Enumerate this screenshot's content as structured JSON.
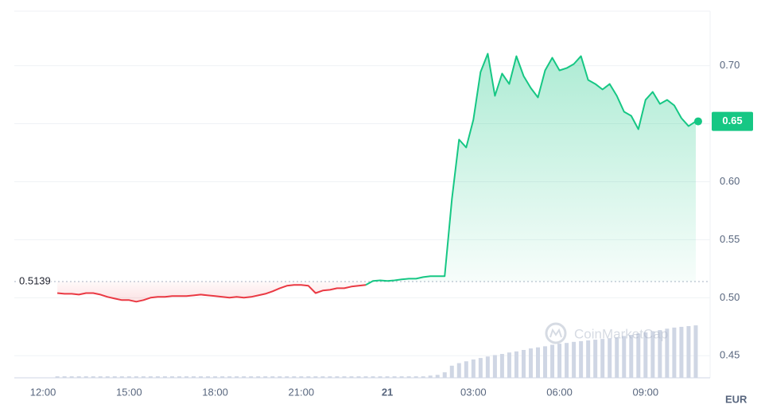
{
  "chart_data": {
    "type": "line",
    "x": [
      12.5,
      12.75,
      13,
      13.25,
      13.5,
      13.75,
      14,
      14.25,
      14.5,
      14.75,
      15,
      15.25,
      15.5,
      15.75,
      16,
      16.25,
      16.5,
      16.75,
      17,
      17.25,
      17.5,
      17.75,
      18,
      18.25,
      18.5,
      18.75,
      19,
      19.25,
      19.5,
      19.75,
      20,
      20.25,
      20.5,
      20.75,
      21,
      21.25,
      21.5,
      21.75,
      22,
      22.25,
      22.5,
      22.75,
      23,
      23.25,
      23.5,
      23.75,
      24,
      24.25,
      24.5,
      24.75,
      25,
      25.25,
      25.5,
      25.75,
      26,
      26.25,
      26.5,
      26.75,
      27,
      27.25,
      27.5,
      27.75,
      28,
      28.25,
      28.5,
      28.75,
      29,
      29.25,
      29.5,
      29.75,
      30,
      30.25,
      30.5,
      30.75,
      31,
      31.25,
      31.5,
      31.75,
      32,
      32.25,
      32.5,
      32.75,
      33,
      33.25,
      33.5,
      33.75,
      34,
      34.25,
      34.5,
      34.75
    ],
    "values": [
      0.504,
      0.5034,
      0.5034,
      0.5027,
      0.504,
      0.504,
      0.5027,
      0.5007,
      0.4993,
      0.498,
      0.498,
      0.4966,
      0.498,
      0.5,
      0.5007,
      0.5007,
      0.5014,
      0.5014,
      0.5014,
      0.502,
      0.5027,
      0.502,
      0.5014,
      0.5007,
      0.5,
      0.5007,
      0.5,
      0.5007,
      0.502,
      0.5034,
      0.5055,
      0.5082,
      0.5103,
      0.511,
      0.511,
      0.5103,
      0.504,
      0.5062,
      0.5068,
      0.5082,
      0.5082,
      0.5096,
      0.5103,
      0.511,
      0.5144,
      0.515,
      0.5144,
      0.515,
      0.5158,
      0.5164,
      0.5164,
      0.5178,
      0.5185,
      0.5185,
      0.5185,
      0.585,
      0.6363,
      0.6295,
      0.6534,
      0.6945,
      0.7103,
      0.674,
      0.6932,
      0.6842,
      0.7082,
      0.6911,
      0.6808,
      0.6726,
      0.6959,
      0.7068,
      0.6959,
      0.6979,
      0.7014,
      0.7082,
      0.6877,
      0.6842,
      0.6795,
      0.6842,
      0.674,
      0.6603,
      0.6568,
      0.6452,
      0.6705,
      0.6774,
      0.6671,
      0.6705,
      0.6658,
      0.6548,
      0.6479,
      0.652
    ],
    "up_color": "#16c784",
    "down_color": "#ea3943",
    "reference": 0.5139,
    "last_value_label": "0.65",
    "volume": {
      "axis": "y2",
      "color": "#cfd6e4",
      "values": [
        0.4,
        0.4,
        0.4,
        0.4,
        0.4,
        0.4,
        0.4,
        0.4,
        0.4,
        0.4,
        0.4,
        0.4,
        0.4,
        0.4,
        0.4,
        0.4,
        0.4,
        0.4,
        0.4,
        0.4,
        0.4,
        0.4,
        0.4,
        0.4,
        0.4,
        0.4,
        0.4,
        0.4,
        0.4,
        0.4,
        0.4,
        0.4,
        0.4,
        0.4,
        0.4,
        0.4,
        0.4,
        0.4,
        0.4,
        0.4,
        0.4,
        0.4,
        0.4,
        0.4,
        0.4,
        0.4,
        0.4,
        0.4,
        0.4,
        0.4,
        0.4,
        0.4,
        0.6,
        0.8,
        1.5,
        3.3,
        4,
        4.5,
        5,
        5.4,
        5.8,
        6.2,
        6.5,
        6.9,
        7.2,
        7.6,
        8,
        8.3,
        8.6,
        9,
        9.3,
        9.5,
        9.8,
        10,
        10.2,
        10.4,
        10.6,
        10.8,
        11,
        11.4,
        11.7,
        12.1,
        12.4,
        12.7,
        13,
        13.4,
        13.7,
        13.9,
        14.1,
        14.3
      ]
    },
    "xlim": [
      11,
      35.25
    ],
    "xticks": [
      {
        "value": 12,
        "label": "12:00"
      },
      {
        "value": 15,
        "label": "15:00"
      },
      {
        "value": 18,
        "label": "18:00"
      },
      {
        "value": 21,
        "label": "21:00"
      },
      {
        "value": 24,
        "label": "21"
      },
      {
        "value": 27,
        "label": "03:00"
      },
      {
        "value": 30,
        "label": "06:00"
      },
      {
        "value": 33,
        "label": "09:00"
      }
    ],
    "ylim": [
      0.431,
      0.747
    ],
    "yticks": [
      0.45,
      {
        "value": 0.5,
        "label": "0.50"
      },
      0.55,
      {
        "value": 0.6,
        "label": "0.60"
      },
      0.65,
      {
        "value": 0.7,
        "label": "0.70"
      }
    ],
    "y2lim": [
      0,
      100
    ],
    "grid": true,
    "currency": "EUR",
    "watermark": "CoinMarketCap"
  }
}
